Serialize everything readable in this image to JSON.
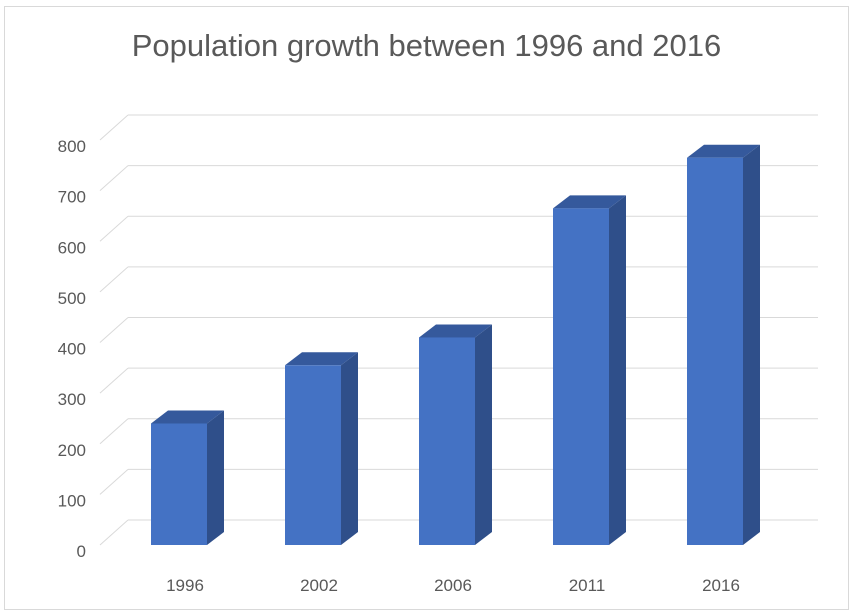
{
  "chart_data": {
    "type": "bar",
    "title": "Population growth between 1996 and 2016",
    "categories": [
      "1996",
      "2002",
      "2006",
      "2011",
      "2016"
    ],
    "values": [
      240,
      355,
      410,
      665,
      765
    ],
    "ylim": [
      0,
      800
    ],
    "yticks": [
      0,
      100,
      200,
      300,
      400,
      500,
      600,
      700,
      800
    ],
    "xlabel": "",
    "ylabel": "",
    "grid": true,
    "legend": "none",
    "bar_color": "#4472C4",
    "bar_side_color": "#2F4F8A",
    "bar_top_color": "#35599C",
    "grid_color": "#d9d9d9",
    "text_color": "#595959"
  }
}
